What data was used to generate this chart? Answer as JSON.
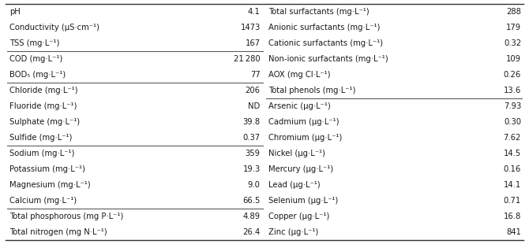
{
  "left_rows": [
    {
      "param": "pH",
      "value": "4.1",
      "line_above": false
    },
    {
      "param": "Conductivity (μS·cm⁻¹)",
      "value": "1473",
      "line_above": false
    },
    {
      "param": "TSS (mg·L⁻¹)",
      "value": "167",
      "line_above": false
    },
    {
      "param": "COD (mg·L⁻¹)",
      "value": "21 280",
      "line_above": true
    },
    {
      "param": "BOD₅ (mg·L⁻¹)",
      "value": "77",
      "line_above": false
    },
    {
      "param": "Chloride (mg·L⁻¹)",
      "value": "206",
      "line_above": true
    },
    {
      "param": "Fluoride (mg·L⁻¹)",
      "value": "ND",
      "line_above": false
    },
    {
      "param": "Sulphate (mg·L⁻¹)",
      "value": "39.8",
      "line_above": false
    },
    {
      "param": "Sulfide (mg·L⁻¹)",
      "value": "0.37",
      "line_above": false
    },
    {
      "param": "Sodium (mg·L⁻¹)",
      "value": "359",
      "line_above": true
    },
    {
      "param": "Potassium (mg·L⁻¹)",
      "value": "19.3",
      "line_above": false
    },
    {
      "param": "Magnesium (mg·L⁻¹)",
      "value": "9.0",
      "line_above": false
    },
    {
      "param": "Calcium (mg·L⁻¹)",
      "value": "66.5",
      "line_above": false
    },
    {
      "param": "Total phosphorous (mg P·L⁻¹)",
      "value": "4.89",
      "line_above": true
    },
    {
      "param": "Total nitrogen (mg N·L⁻¹)",
      "value": "26.4",
      "line_above": false
    }
  ],
  "right_rows": [
    {
      "param": "Total surfactants (mg·L⁻¹)",
      "value": "288",
      "line_above": false
    },
    {
      "param": "Anionic surfactants (mg·L⁻¹)",
      "value": "179",
      "line_above": false
    },
    {
      "param": "Cationic surfactants (mg·L⁻¹)",
      "value": "0.32",
      "line_above": false
    },
    {
      "param": "Non-ionic surfactants (mg·L⁻¹)",
      "value": "109",
      "line_above": false
    },
    {
      "param": "AOX (mg Cl·L⁻¹)",
      "value": "0.26",
      "line_above": false
    },
    {
      "param": "Total phenols (mg·L⁻¹)",
      "value": "13.6",
      "line_above": false
    },
    {
      "param": "Arsenic (μg·L⁻¹)",
      "value": "7.93",
      "line_above": true
    },
    {
      "param": "Cadmium (μg·L⁻¹)",
      "value": "0.30",
      "line_above": false
    },
    {
      "param": "Chromium (μg·L⁻¹)",
      "value": "7.62",
      "line_above": false
    },
    {
      "param": "Nickel (μg·L⁻¹)",
      "value": "14.5",
      "line_above": false
    },
    {
      "param": "Mercury (μg·L⁻¹)",
      "value": "0.16",
      "line_above": false
    },
    {
      "param": "Lead (μg·L⁻¹)",
      "value": "14.1",
      "line_above": false
    },
    {
      "param": "Selenium (μg·L⁻¹)",
      "value": "0.71",
      "line_above": false
    },
    {
      "param": "Copper (μg·L⁻¹)",
      "value": "16.8",
      "line_above": false
    },
    {
      "param": "Zinc (μg·L⁻¹)",
      "value": "841",
      "line_above": false
    }
  ],
  "bg_color": "#ffffff",
  "text_color": "#1a1a1a",
  "line_color": "#555555",
  "font_size": 7.2,
  "border_color": "#333333",
  "figwidth": 6.7,
  "figheight": 3.1,
  "dpi": 100
}
